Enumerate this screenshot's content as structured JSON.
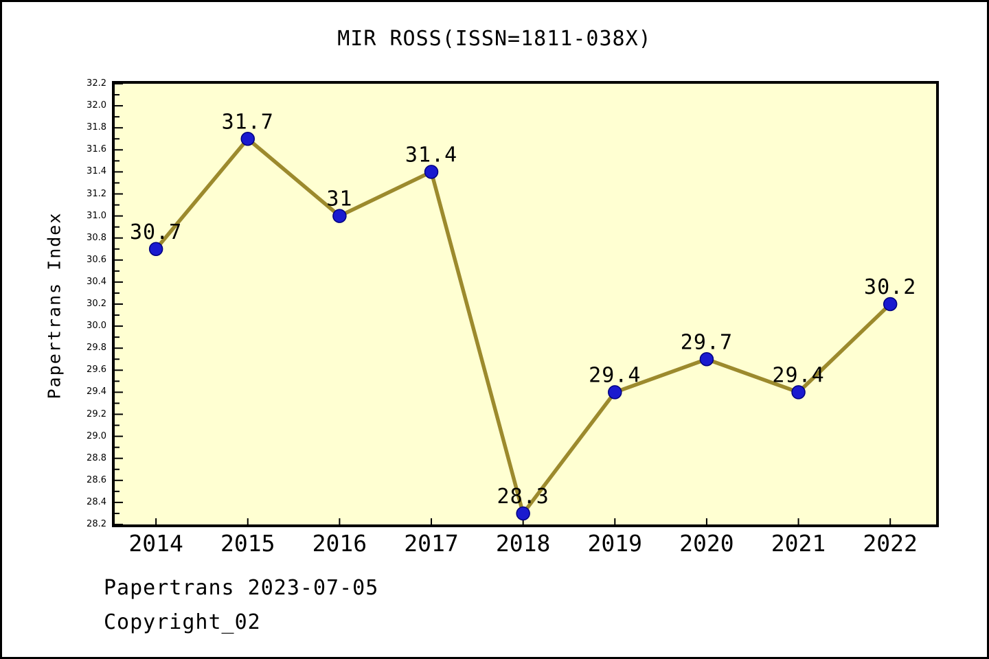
{
  "window": {
    "background": "#ffffff",
    "border_color": "#000000"
  },
  "chart_data": {
    "type": "line",
    "title": "MIR ROSS(ISSN=1811-038X)",
    "xlabel": "",
    "ylabel": "Papertrans Index",
    "categories": [
      "2014",
      "2015",
      "2016",
      "2017",
      "2018",
      "2019",
      "2020",
      "2021",
      "2022"
    ],
    "series": [
      {
        "name": "Papertrans Index",
        "values": [
          30.7,
          31.7,
          31,
          31.4,
          28.3,
          29.4,
          29.7,
          29.4,
          30.2
        ],
        "point_labels": [
          "30.7",
          "31.7",
          "31",
          "31.4",
          "28.3",
          "29.4",
          "29.7",
          "29.4",
          "30.2"
        ]
      }
    ],
    "ylim": [
      28.2,
      32.2
    ],
    "ytick_step": 0.2,
    "ytick_minor_step": 0.1,
    "xlim": [
      2013.55,
      2022.5
    ],
    "grid": false,
    "legend_position": "none",
    "colors": {
      "plot_background": "#FFFFD2",
      "line": "#9C8A2D",
      "marker_fill": "#1A1ACF",
      "marker_edge": "#000080",
      "axis": "#000000",
      "text": "#000000"
    }
  },
  "footer": {
    "date_line": "Papertrans 2023-07-05",
    "copyright_line": "Copyright_02"
  }
}
